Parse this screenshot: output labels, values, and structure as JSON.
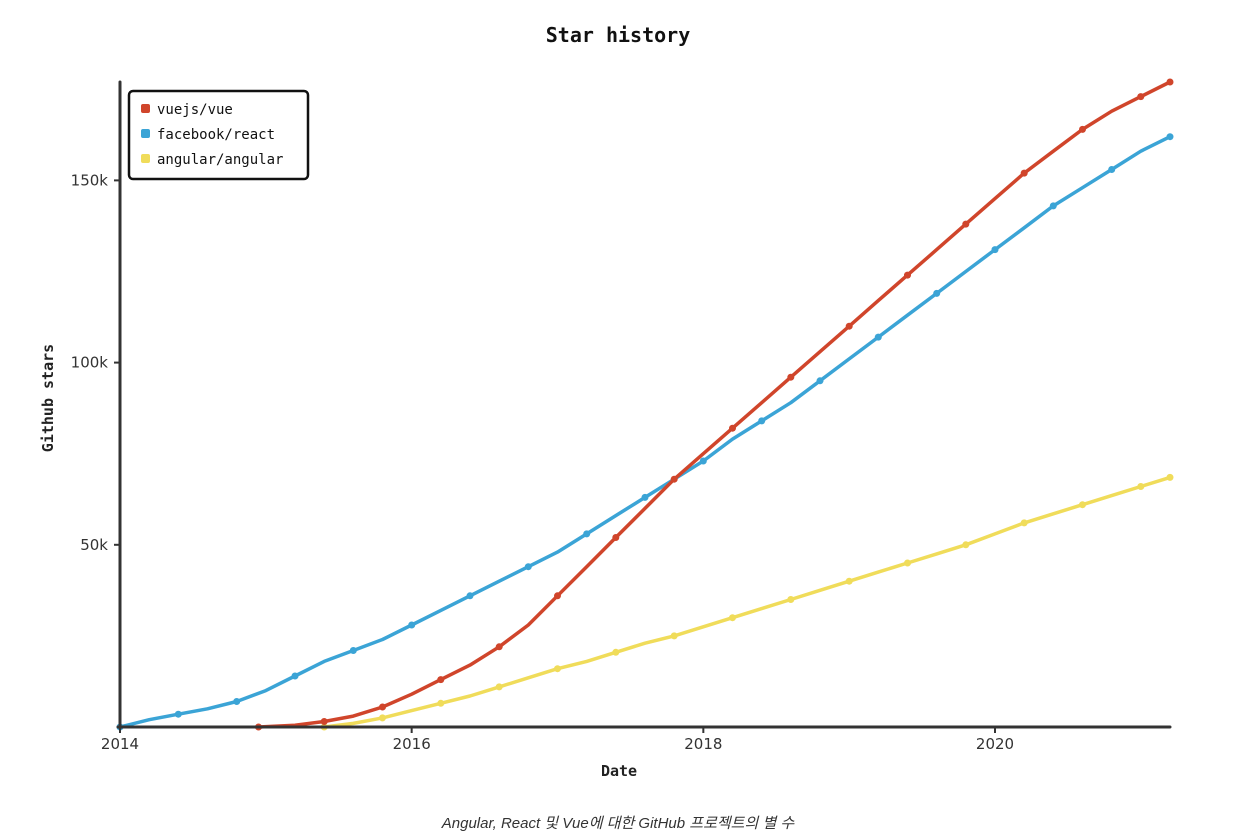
{
  "colors": {
    "vue": "#d0452b",
    "react": "#3ba4d6",
    "angular": "#f0dc5a",
    "axis": "#333333"
  },
  "caption": "Angular, React 및 Vue에 대한 GitHub 프로젝트의 별 수",
  "chart_data": {
    "type": "line",
    "title": "Star history",
    "xlabel": "Date",
    "ylabel": "Github stars",
    "xlim": [
      2014.0,
      2021.2
    ],
    "ylim": [
      0,
      177000
    ],
    "x_ticks": [
      {
        "value": 2014,
        "label": "2014"
      },
      {
        "value": 2016,
        "label": "2016"
      },
      {
        "value": 2018,
        "label": "2018"
      },
      {
        "value": 2020,
        "label": "2020"
      }
    ],
    "y_ticks": [
      {
        "value": 50000,
        "label": "50k"
      },
      {
        "value": 100000,
        "label": "100k"
      },
      {
        "value": 150000,
        "label": "150k"
      }
    ],
    "legend_position": "top-left",
    "grid": false,
    "series": [
      {
        "name": "vuejs/vue",
        "color_key": "vue",
        "points": [
          [
            2014.95,
            0
          ],
          [
            2015.2,
            500
          ],
          [
            2015.4,
            1500
          ],
          [
            2015.6,
            3000
          ],
          [
            2015.8,
            5500
          ],
          [
            2016.0,
            9000
          ],
          [
            2016.2,
            13000
          ],
          [
            2016.4,
            17000
          ],
          [
            2016.6,
            22000
          ],
          [
            2016.8,
            28000
          ],
          [
            2017.0,
            36000
          ],
          [
            2017.2,
            44000
          ],
          [
            2017.4,
            52000
          ],
          [
            2017.6,
            60000
          ],
          [
            2017.8,
            68000
          ],
          [
            2018.0,
            75000
          ],
          [
            2018.2,
            82000
          ],
          [
            2018.4,
            89000
          ],
          [
            2018.6,
            96000
          ],
          [
            2018.8,
            103000
          ],
          [
            2019.0,
            110000
          ],
          [
            2019.2,
            117000
          ],
          [
            2019.4,
            124000
          ],
          [
            2019.6,
            131000
          ],
          [
            2019.8,
            138000
          ],
          [
            2020.0,
            145000
          ],
          [
            2020.2,
            152000
          ],
          [
            2020.4,
            158000
          ],
          [
            2020.6,
            164000
          ],
          [
            2020.8,
            169000
          ],
          [
            2021.0,
            173000
          ],
          [
            2021.2,
            177000
          ]
        ]
      },
      {
        "name": "facebook/react",
        "color_key": "react",
        "points": [
          [
            2014.0,
            0
          ],
          [
            2014.2,
            2000
          ],
          [
            2014.4,
            3500
          ],
          [
            2014.6,
            5000
          ],
          [
            2014.8,
            7000
          ],
          [
            2015.0,
            10000
          ],
          [
            2015.2,
            14000
          ],
          [
            2015.4,
            18000
          ],
          [
            2015.6,
            21000
          ],
          [
            2015.8,
            24000
          ],
          [
            2016.0,
            28000
          ],
          [
            2016.2,
            32000
          ],
          [
            2016.4,
            36000
          ],
          [
            2016.6,
            40000
          ],
          [
            2016.8,
            44000
          ],
          [
            2017.0,
            48000
          ],
          [
            2017.2,
            53000
          ],
          [
            2017.4,
            58000
          ],
          [
            2017.6,
            63000
          ],
          [
            2017.8,
            68000
          ],
          [
            2018.0,
            73000
          ],
          [
            2018.2,
            79000
          ],
          [
            2018.4,
            84000
          ],
          [
            2018.6,
            89000
          ],
          [
            2018.8,
            95000
          ],
          [
            2019.0,
            101000
          ],
          [
            2019.2,
            107000
          ],
          [
            2019.4,
            113000
          ],
          [
            2019.6,
            119000
          ],
          [
            2019.8,
            125000
          ],
          [
            2020.0,
            131000
          ],
          [
            2020.2,
            137000
          ],
          [
            2020.4,
            143000
          ],
          [
            2020.6,
            148000
          ],
          [
            2020.8,
            153000
          ],
          [
            2021.0,
            158000
          ],
          [
            2021.2,
            162000
          ]
        ]
      },
      {
        "name": "angular/angular",
        "color_key": "angular",
        "points": [
          [
            2015.4,
            0
          ],
          [
            2015.6,
            1000
          ],
          [
            2015.8,
            2500
          ],
          [
            2016.0,
            4500
          ],
          [
            2016.2,
            6500
          ],
          [
            2016.4,
            8500
          ],
          [
            2016.6,
            11000
          ],
          [
            2016.8,
            13500
          ],
          [
            2017.0,
            16000
          ],
          [
            2017.2,
            18000
          ],
          [
            2017.4,
            20500
          ],
          [
            2017.6,
            23000
          ],
          [
            2017.8,
            25000
          ],
          [
            2018.0,
            27500
          ],
          [
            2018.2,
            30000
          ],
          [
            2018.4,
            32500
          ],
          [
            2018.6,
            35000
          ],
          [
            2018.8,
            37500
          ],
          [
            2019.0,
            40000
          ],
          [
            2019.2,
            42500
          ],
          [
            2019.4,
            45000
          ],
          [
            2019.6,
            47500
          ],
          [
            2019.8,
            50000
          ],
          [
            2020.0,
            53000
          ],
          [
            2020.2,
            56000
          ],
          [
            2020.4,
            58500
          ],
          [
            2020.6,
            61000
          ],
          [
            2020.8,
            63500
          ],
          [
            2021.0,
            66000
          ],
          [
            2021.2,
            68500
          ]
        ]
      }
    ]
  }
}
